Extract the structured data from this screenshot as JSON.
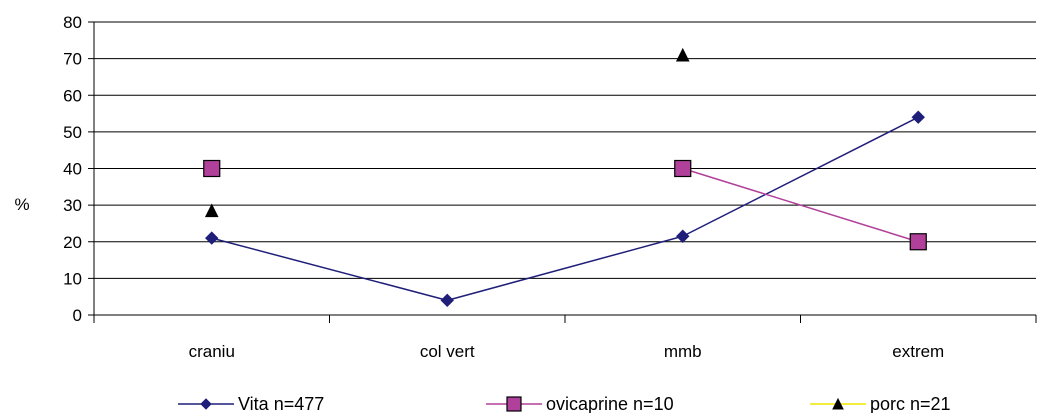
{
  "chart_data": {
    "type": "line",
    "title": "",
    "xlabel": "",
    "ylabel": "%",
    "ylim": [
      0,
      80
    ],
    "yticks": [
      0,
      10,
      20,
      30,
      40,
      50,
      60,
      70,
      80
    ],
    "categories": [
      "craniu",
      "col vert",
      "mmb",
      "extrem"
    ],
    "grid": true,
    "legend": "bottom",
    "series": [
      {
        "name": "Vita n=477",
        "values": [
          21,
          4,
          21.5,
          54
        ],
        "color": "#1f1f7a",
        "marker": "diamond",
        "line": true
      },
      {
        "name": "ovicaprine n=10",
        "values": [
          40,
          null,
          40,
          20
        ],
        "color": "#b0409a",
        "marker": "square",
        "line": true
      },
      {
        "name": "porc n=21",
        "values": [
          28.5,
          null,
          71,
          null
        ],
        "color": "#f2e600",
        "marker": "triangle",
        "line": true
      }
    ]
  }
}
